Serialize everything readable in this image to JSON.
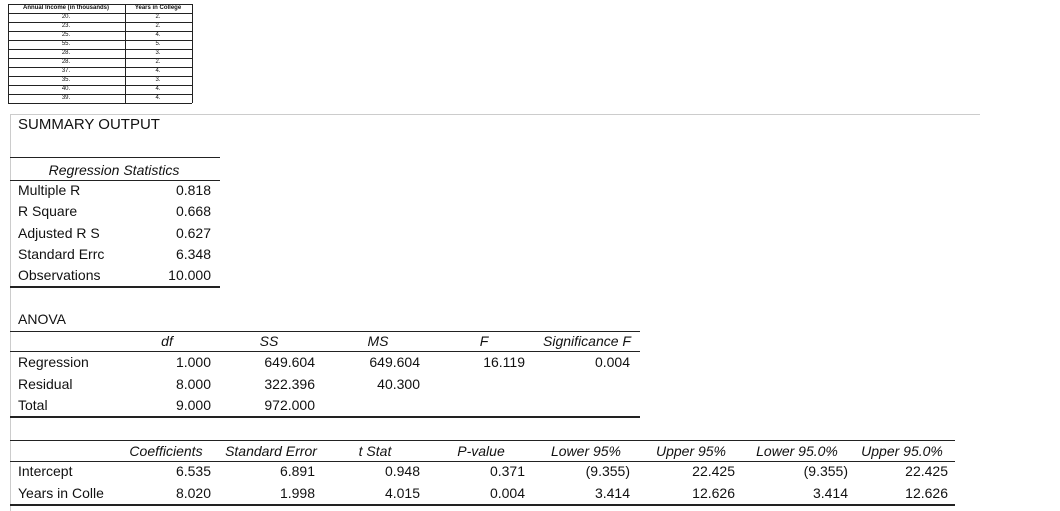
{
  "data_table": {
    "headers": [
      "Annual Income (in thousands)",
      "Years in College"
    ],
    "rows": [
      [
        "20.",
        "2."
      ],
      [
        "23.",
        "2."
      ],
      [
        "25.",
        "4."
      ],
      [
        "55.",
        "5."
      ],
      [
        "28.",
        "3."
      ],
      [
        "28.",
        "2."
      ],
      [
        "37.",
        "4."
      ],
      [
        "35.",
        "3."
      ],
      [
        "40.",
        "4."
      ],
      [
        "39.",
        "4."
      ]
    ]
  },
  "summary_title": "SUMMARY OUTPUT",
  "regression_statistics": {
    "title": "Regression Statistics",
    "rows": [
      [
        "Multiple R",
        "0.818"
      ],
      [
        "R Square",
        "0.668"
      ],
      [
        "Adjusted R S",
        "0.627"
      ],
      [
        "Standard Errc",
        "6.348"
      ],
      [
        "Observations",
        "10.000"
      ]
    ]
  },
  "anova": {
    "title": "ANOVA",
    "headers": [
      "df",
      "SS",
      "MS",
      "F",
      "Significance F"
    ],
    "rows": [
      {
        "label": "Regression",
        "cells": [
          "1.000",
          "649.604",
          "649.604",
          "16.119",
          "0.004"
        ]
      },
      {
        "label": "Residual",
        "cells": [
          "8.000",
          "322.396",
          "40.300"
        ]
      },
      {
        "label": "Total",
        "cells": [
          "9.000",
          "972.000"
        ]
      }
    ]
  },
  "coefficients": {
    "headers": [
      "Coefficients",
      "Standard Error",
      "t Stat",
      "P-value",
      "Lower 95%",
      "Upper 95%",
      "Lower 95.0%",
      "Upper 95.0%"
    ],
    "rows": [
      {
        "label": "Intercept",
        "cells": [
          "6.535",
          "6.891",
          "0.948",
          "0.371",
          "(9.355)",
          "22.425",
          "(9.355)",
          "22.425"
        ]
      },
      {
        "label": "Years in Colle",
        "cells": [
          "8.020",
          "1.998",
          "4.015",
          "0.004",
          "3.414",
          "12.626",
          "3.414",
          "12.626"
        ]
      }
    ]
  }
}
